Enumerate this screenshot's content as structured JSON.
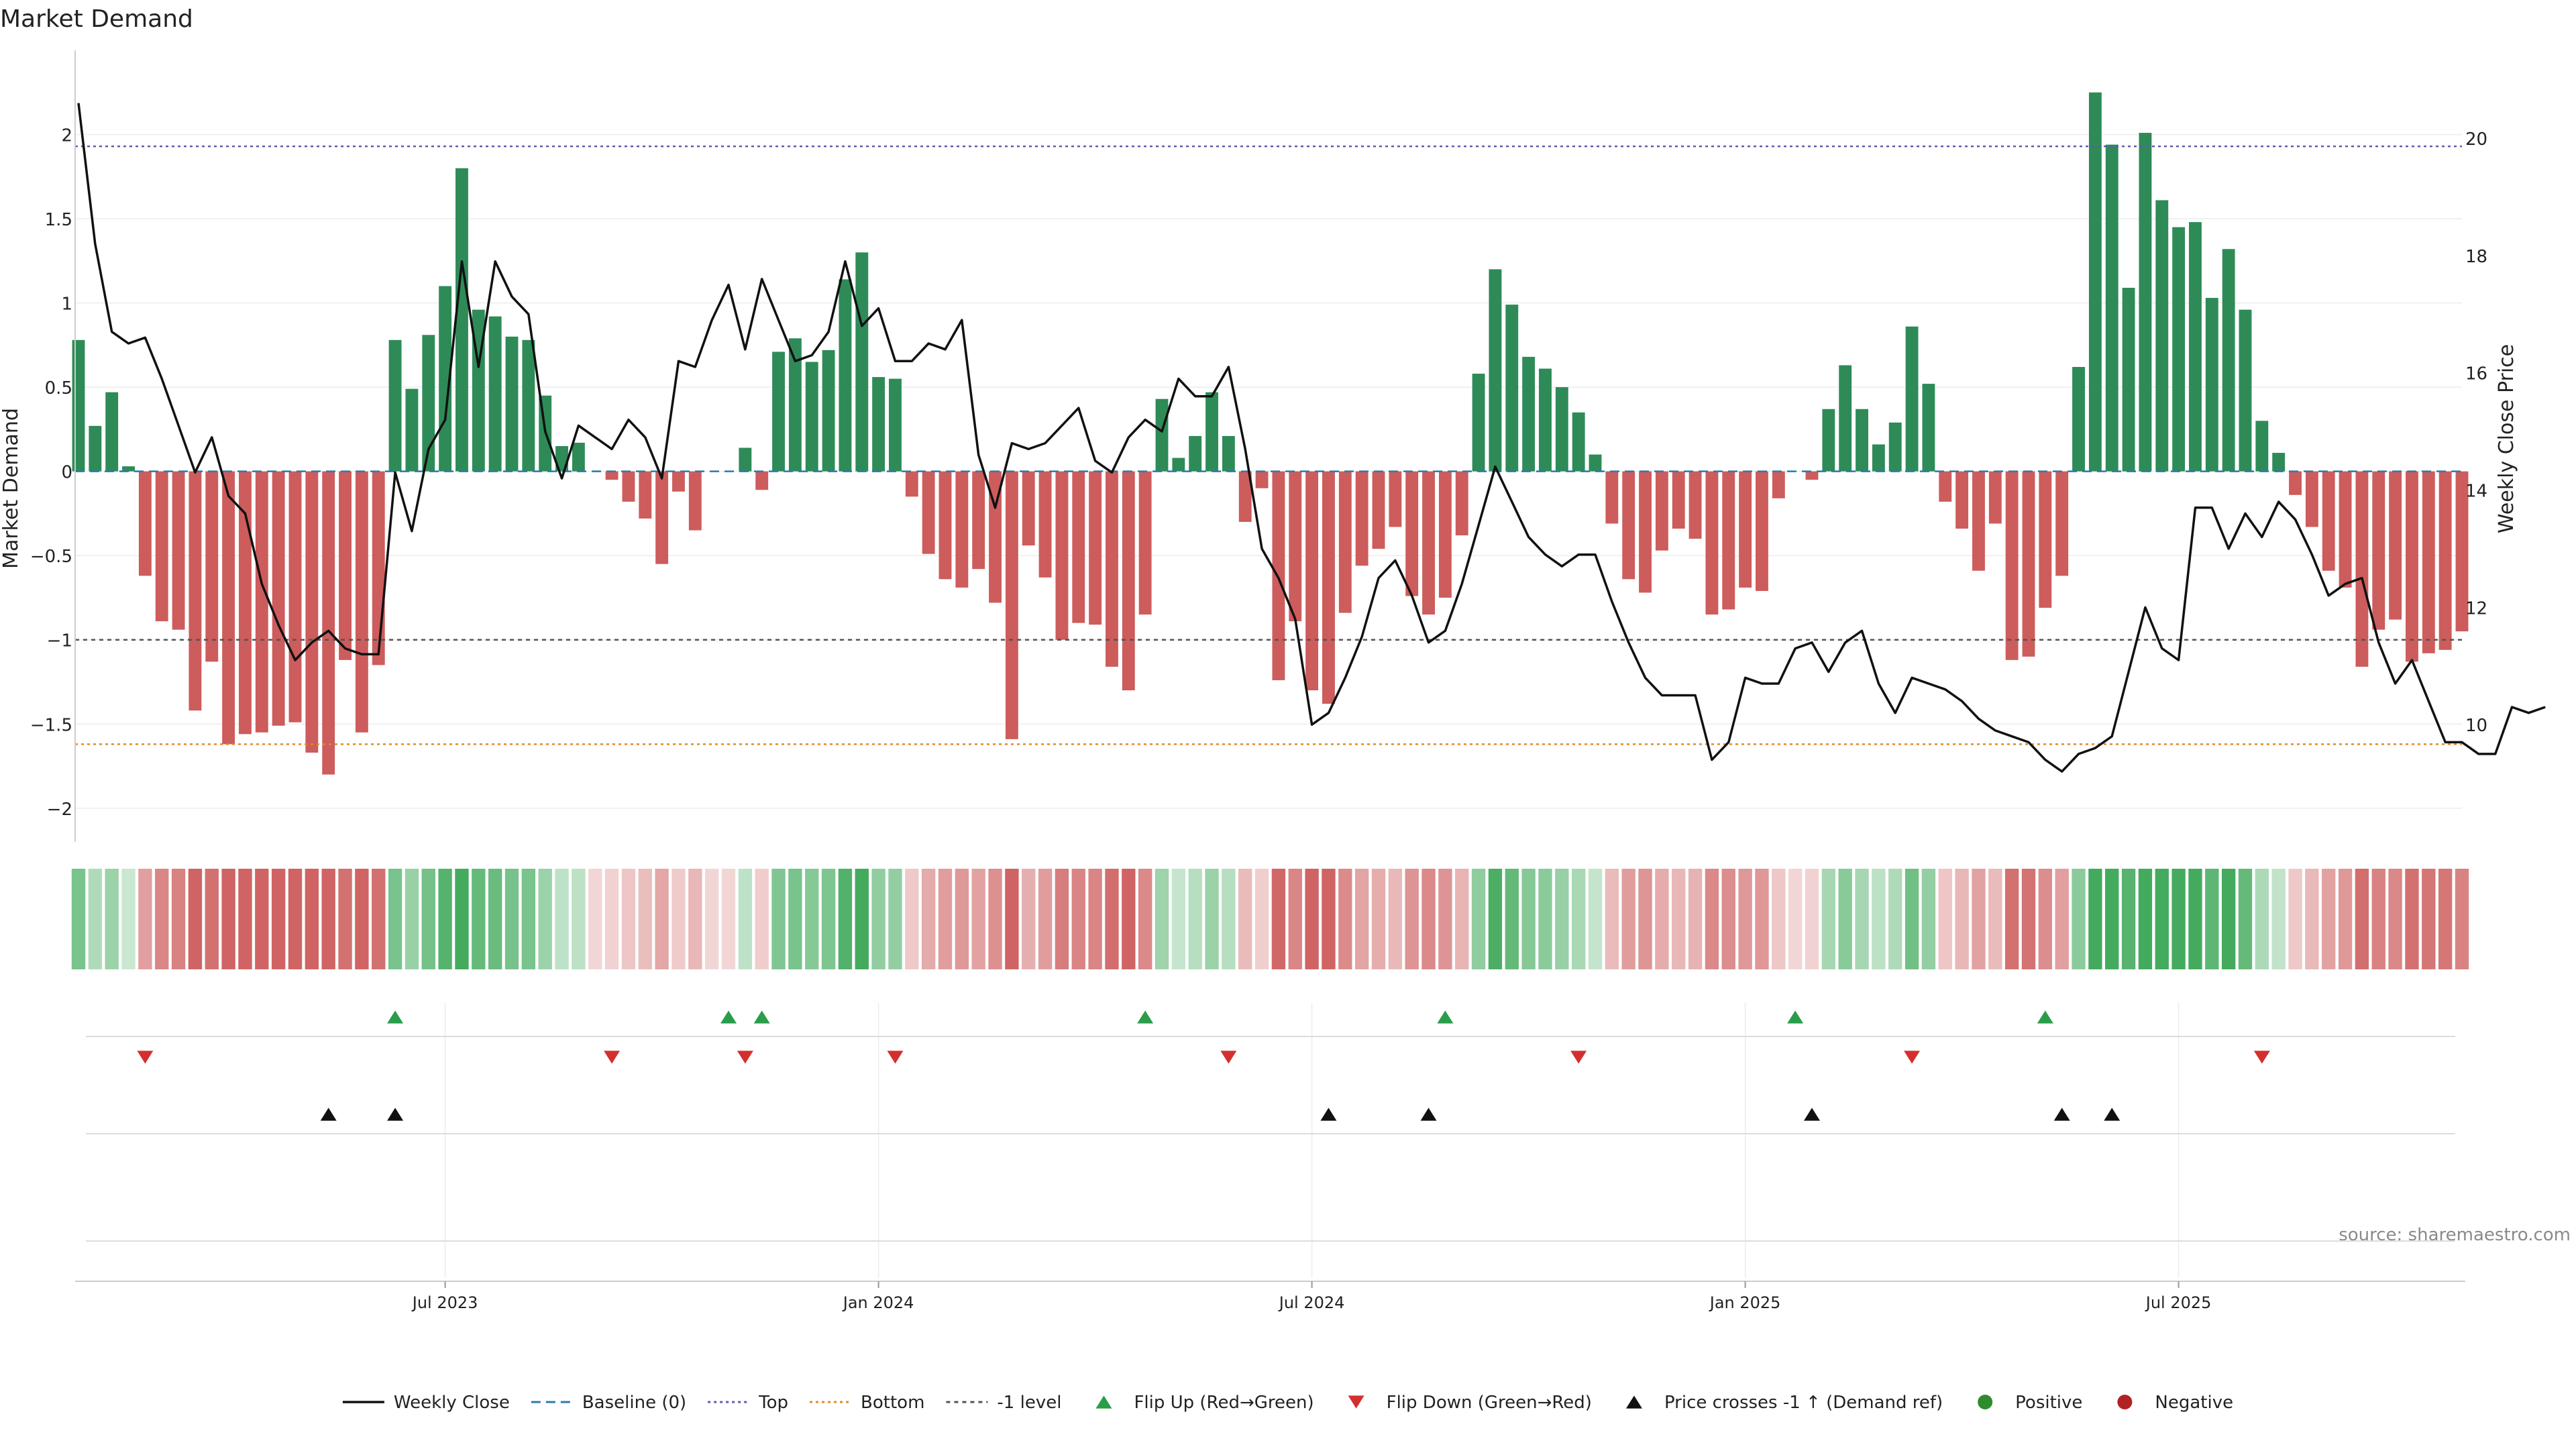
{
  "chart_data": {
    "type": "bar",
    "title": "Market Demand",
    "ylabel": "Market Demand",
    "y2label": "Weekly Close Price",
    "ylim": [
      -2.2,
      2.5
    ],
    "y2lim": [
      8.0,
      21.5
    ],
    "yticks": [
      "2",
      "1.5",
      "1",
      "0.5",
      "0",
      "−0.5",
      "−1",
      "−1.5",
      "−2"
    ],
    "yticks_values": [
      2,
      1.5,
      1,
      0.5,
      0,
      -0.5,
      -1,
      -1.5,
      -2
    ],
    "y2ticks": [
      20,
      18,
      16,
      14,
      12,
      10
    ],
    "xticks": [
      {
        "label": "Jul 2023",
        "week": 22
      },
      {
        "label": "Jan 2024",
        "week": 48
      },
      {
        "label": "Jul 2024",
        "week": 74
      },
      {
        "label": "Jan 2025",
        "week": 100
      },
      {
        "label": "Jul 2025",
        "week": 126
      }
    ],
    "levels": {
      "baseline": 0,
      "top": 1.93,
      "bottom": -1.62,
      "minus_one": -1
    },
    "series": [
      {
        "name": "Market Demand",
        "values": [
          0.78,
          0.27,
          0.47,
          0.03,
          -0.62,
          -0.89,
          -0.94,
          -1.42,
          -1.13,
          -1.62,
          -1.56,
          -1.55,
          -1.51,
          -1.49,
          -1.67,
          -1.8,
          -1.12,
          -1.55,
          -1.15,
          0.78,
          0.49,
          0.81,
          1.1,
          1.8,
          0.96,
          0.92,
          0.8,
          0.78,
          0.45,
          0.15,
          0.17,
          0.0,
          -0.05,
          -0.18,
          -0.28,
          -0.55,
          -0.12,
          -0.35,
          0.0,
          0.0,
          0.14,
          -0.11,
          0.71,
          0.79,
          0.65,
          0.72,
          1.14,
          1.3,
          0.56,
          0.55,
          -0.15,
          -0.49,
          -0.64,
          -0.69,
          -0.58,
          -0.78,
          -1.59,
          -0.44,
          -0.63,
          -1.0,
          -0.9,
          -0.91,
          -1.16,
          -1.3,
          -0.85,
          0.43,
          0.08,
          0.21,
          0.47,
          0.21,
          -0.3,
          -0.1,
          -1.24,
          -0.89,
          -1.3,
          -1.38,
          -0.84,
          -0.56,
          -0.46,
          -0.33,
          -0.74,
          -0.85,
          -0.75,
          -0.38,
          0.58,
          1.2,
          0.99,
          0.68,
          0.61,
          0.5,
          0.35,
          0.1,
          -0.31,
          -0.64,
          -0.72,
          -0.47,
          -0.34,
          -0.4,
          -0.85,
          -0.82,
          -0.69,
          -0.71,
          -0.16,
          0.0,
          -0.05,
          0.37,
          0.63,
          0.37,
          0.16,
          0.29,
          0.86,
          0.52,
          -0.18,
          -0.34,
          -0.59,
          -0.31,
          -1.12,
          -1.1,
          -0.81,
          -0.62,
          0.62,
          2.25,
          1.94,
          1.09,
          2.01,
          1.61,
          1.45,
          1.48,
          1.03,
          1.32,
          0.96,
          0.3,
          0.11,
          -0.14,
          -0.33,
          -0.59,
          -0.69,
          -1.16,
          -0.94,
          -0.88,
          -1.13,
          -1.08,
          -1.06,
          -0.95
        ]
      },
      {
        "name": "Weekly Close",
        "values": [
          20.6,
          18.2,
          16.7,
          16.5,
          16.6,
          15.9,
          15.1,
          14.3,
          14.9,
          13.9,
          13.6,
          12.4,
          11.7,
          11.1,
          11.4,
          11.6,
          11.3,
          11.2,
          11.2,
          14.3,
          13.3,
          14.7,
          15.2,
          17.9,
          16.1,
          17.9,
          17.3,
          17.0,
          15.0,
          14.2,
          15.1,
          14.9,
          14.7,
          15.2,
          14.9,
          14.2,
          16.2,
          16.1,
          16.9,
          17.5,
          16.4,
          17.6,
          16.9,
          16.2,
          16.3,
          16.7,
          17.9,
          16.8,
          17.1,
          16.2,
          16.2,
          16.5,
          16.4,
          16.9,
          14.6,
          13.7,
          14.8,
          14.7,
          14.8,
          15.1,
          15.4,
          14.5,
          14.3,
          14.9,
          15.2,
          15.0,
          15.9,
          15.6,
          15.6,
          16.1,
          14.7,
          13.0,
          12.5,
          11.8,
          10.0,
          10.2,
          10.8,
          11.5,
          12.5,
          12.8,
          12.2,
          11.4,
          11.6,
          12.4,
          13.4,
          14.4,
          13.8,
          13.2,
          12.9,
          12.7,
          12.9,
          12.9,
          12.1,
          11.4,
          10.8,
          10.5,
          10.5,
          10.5,
          9.4,
          9.7,
          10.8,
          10.7,
          10.7,
          11.3,
          11.4,
          10.9,
          11.4,
          11.6,
          10.7,
          10.2,
          10.8,
          10.7,
          10.6,
          10.4,
          10.1,
          9.9,
          9.8,
          9.7,
          9.4,
          9.2,
          9.5,
          9.6,
          9.8,
          10.9,
          12.0,
          11.3,
          11.1,
          13.7,
          13.7,
          13.0,
          13.6,
          13.2,
          13.8,
          13.5,
          12.9,
          12.2,
          12.4,
          12.5,
          11.4,
          10.7,
          11.1,
          10.4,
          9.7,
          9.7,
          9.5,
          9.5,
          10.3,
          10.2,
          10.3
        ]
      }
    ],
    "flip_up_weeks": [
      19,
      39,
      41,
      64,
      82,
      103,
      118
    ],
    "flip_down_weeks": [
      4,
      32,
      40,
      49,
      69,
      90,
      110,
      131
    ],
    "price_cross_weeks": [
      15,
      19,
      75,
      81,
      104,
      119,
      122
    ],
    "colors": {
      "positive": "#2e8b57",
      "negative": "#cd5c5c",
      "line": "#111111",
      "baseline": "#2a7ab0",
      "top": "#5b5bb0",
      "bottom": "#e08a2a",
      "minus_one": "#555555",
      "flip_up": "#2a9d4a",
      "flip_down": "#d32f2f",
      "cross": "#111111",
      "dot_positive": "#2e8b2e",
      "dot_negative": "#b22222"
    },
    "legend_position": "bottom-center",
    "legend": [
      {
        "key": "line",
        "label": "Weekly Close"
      },
      {
        "key": "baseline",
        "label": "Baseline (0)"
      },
      {
        "key": "top",
        "label": "Top"
      },
      {
        "key": "bottom",
        "label": "Bottom"
      },
      {
        "key": "minus_one",
        "label": "-1 level"
      },
      {
        "key": "flip_up",
        "label": "Flip Up (Red→Green)"
      },
      {
        "key": "flip_down",
        "label": "Flip Down (Green→Red)"
      },
      {
        "key": "cross",
        "label": "Price crosses -1 ↑ (Demand ref)"
      },
      {
        "key": "dot_positive",
        "label": "Positive"
      },
      {
        "key": "dot_negative",
        "label": "Negative"
      }
    ],
    "source": "source: sharemaestro.com"
  }
}
